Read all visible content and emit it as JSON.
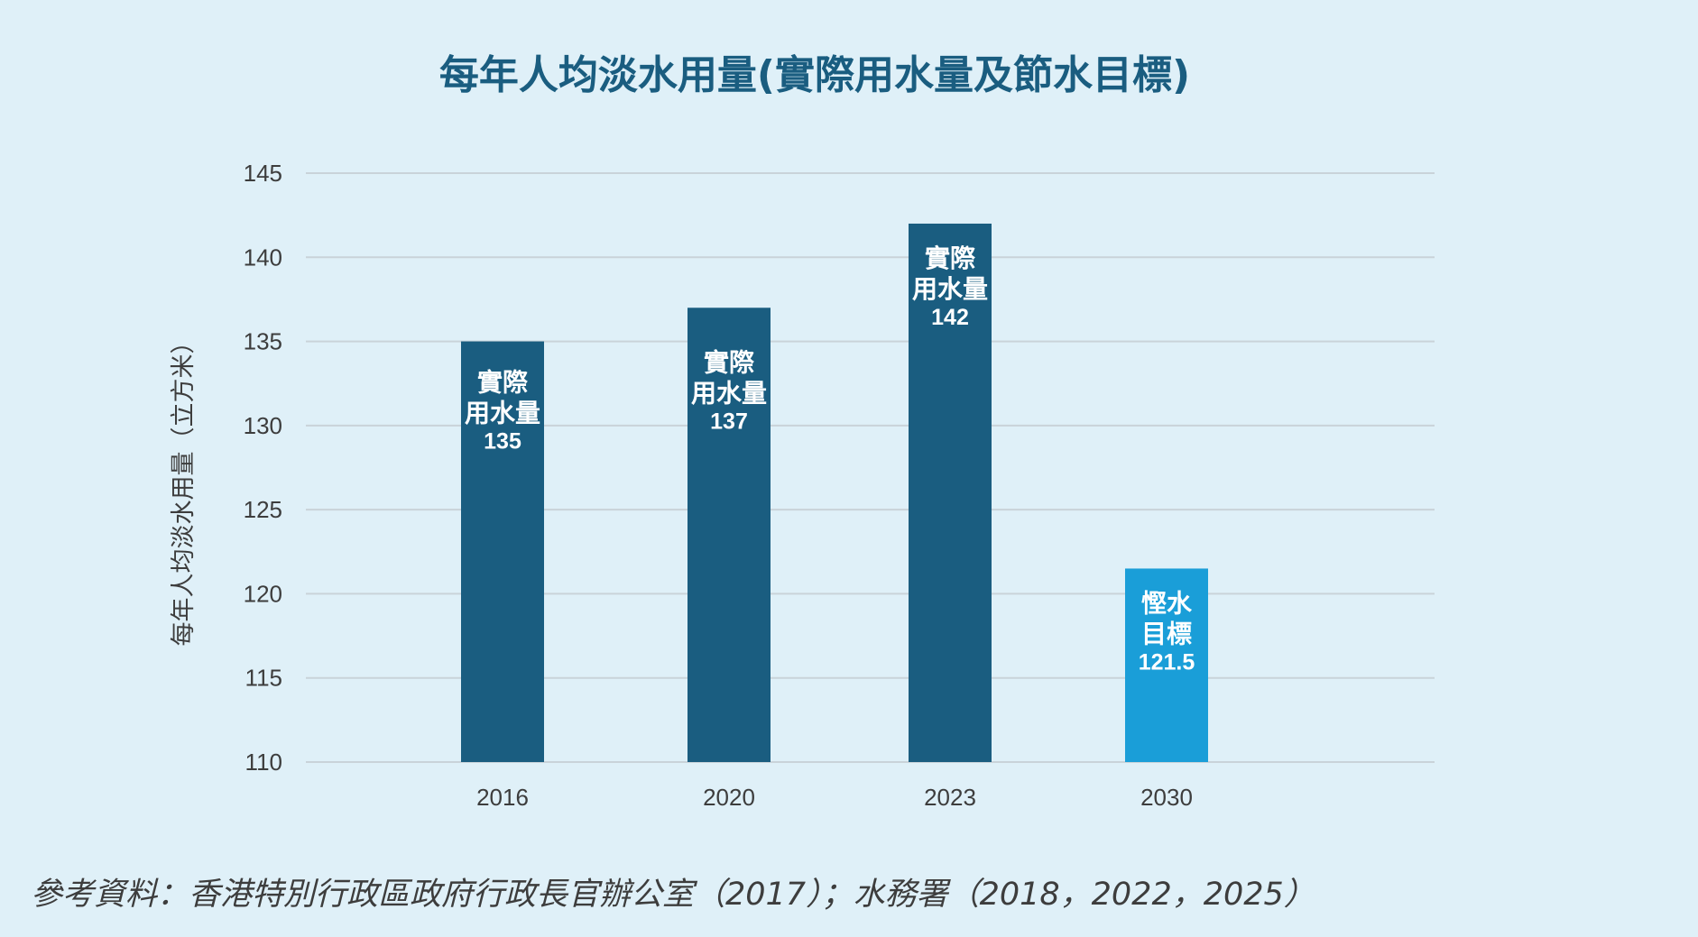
{
  "colors": {
    "background": "#dff0f8",
    "title": "#1a5d80",
    "actual_bar": "#1a5d80",
    "target_bar": "#1a9ed8",
    "grid": "#c9d3d9",
    "text": "#3d3d3d"
  },
  "chart_data": {
    "type": "bar",
    "title": "每年人均淡水用量(實際用水量及節水目標)",
    "xlabel": "",
    "ylabel": "每年人均淡水用量（立方米）",
    "ylim": [
      110,
      145
    ],
    "yticks": [
      "110",
      "115",
      "120",
      "125",
      "130",
      "135",
      "140",
      "145"
    ],
    "grid": true,
    "categories": [
      "2016",
      "2020",
      "2023",
      "2030"
    ],
    "values": [
      135,
      137,
      142,
      121.5
    ],
    "bar_labels": [
      [
        "實際",
        "用水量",
        "135"
      ],
      [
        "實際",
        "用水量",
        "137"
      ],
      [
        "實際",
        "用水量",
        "142"
      ],
      [
        "慳水",
        "目標",
        "121.5"
      ]
    ],
    "bar_kind": [
      "actual",
      "actual",
      "actual",
      "target"
    ]
  },
  "source": "參考資料：香港特別行政區政府行政長官辦公室（2017）；水務署（2018，2022，2025）"
}
